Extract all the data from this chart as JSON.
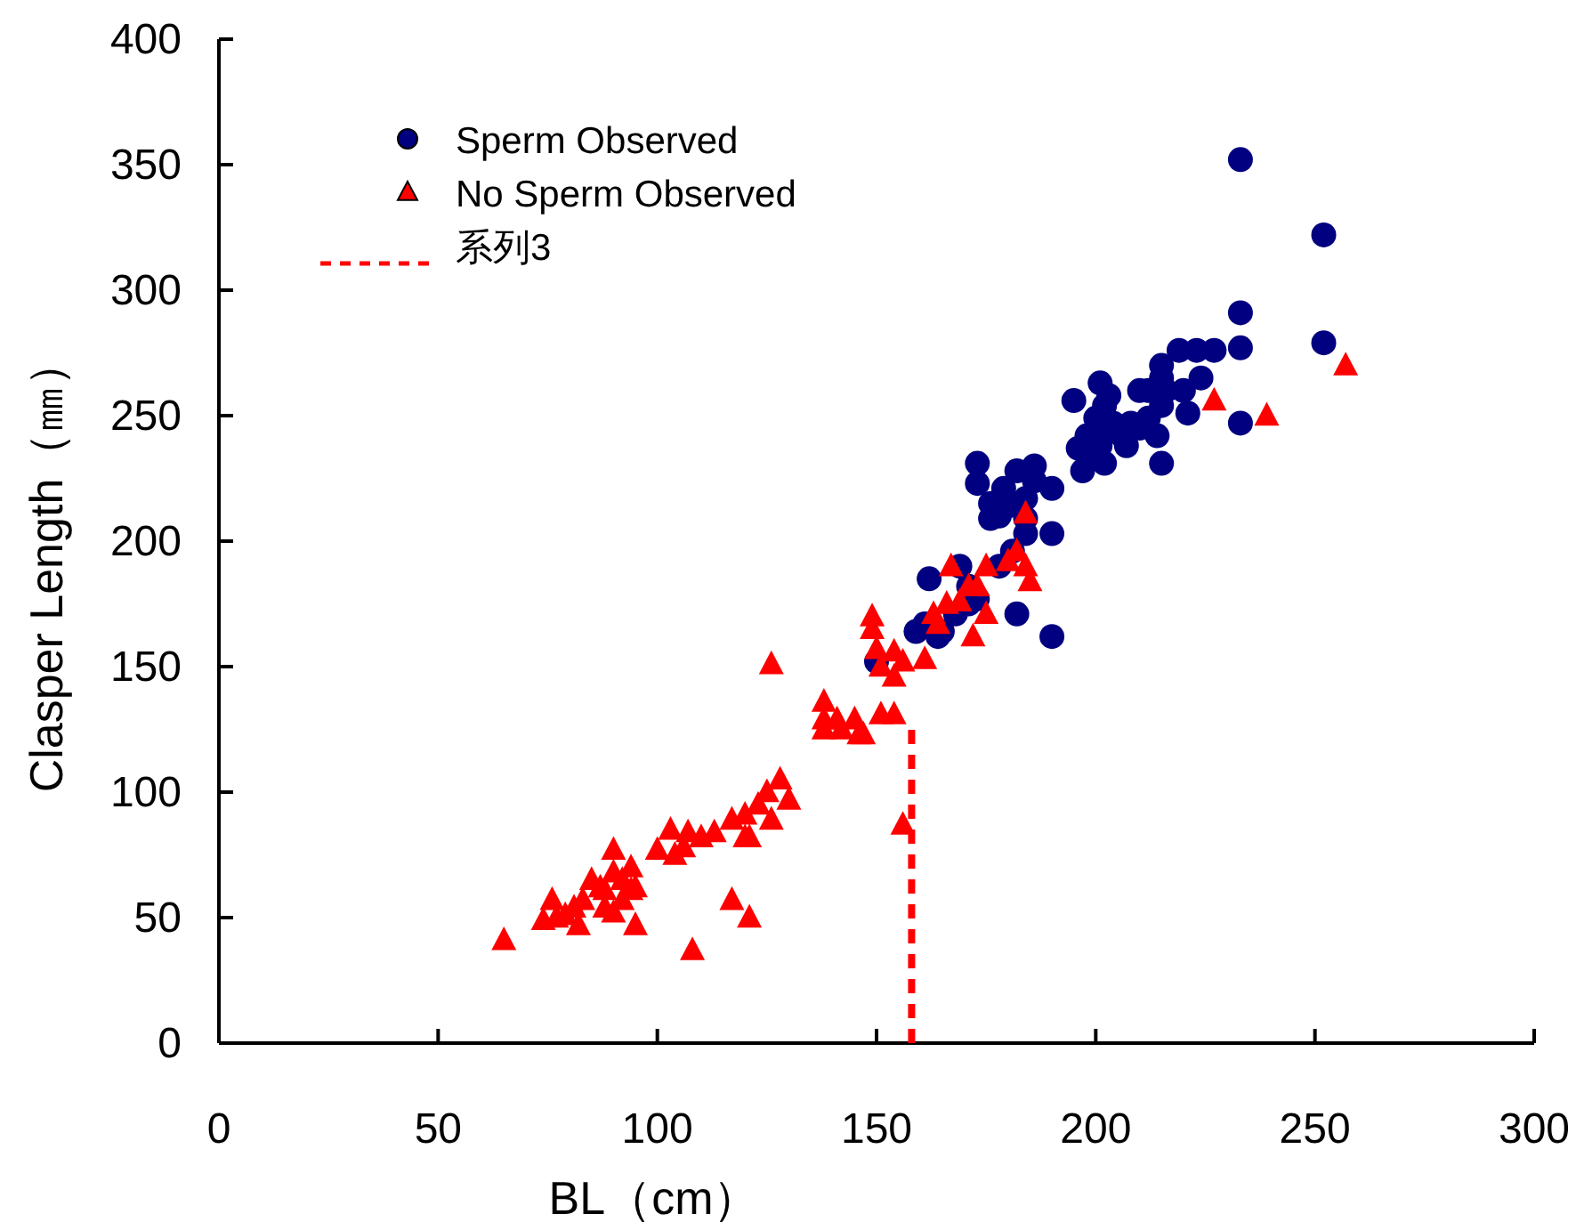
{
  "chart_data": {
    "type": "scatter",
    "xlabel": "BL（cm）",
    "ylabel": "Clasper Length（㎜）",
    "xlim": [
      0,
      300
    ],
    "xticks": [
      0,
      50,
      100,
      150,
      200,
      250,
      300
    ],
    "ylim": [
      0,
      400
    ],
    "yticks": [
      0,
      50,
      100,
      150,
      200,
      250,
      300,
      350,
      400
    ],
    "grid": false,
    "legend": "top left",
    "series": [
      {
        "name": "Sperm Observed",
        "marker": "circle",
        "color": "#000080",
        "x": [
          233,
          252,
          252,
          233,
          233,
          233,
          227,
          219,
          223,
          215,
          215,
          224,
          212,
          216,
          220,
          210,
          215,
          221,
          212,
          210,
          214,
          215,
          202,
          200,
          198,
          204,
          206,
          201,
          208,
          207,
          202,
          201,
          203,
          196,
          197,
          195,
          198,
          202,
          173,
          173,
          179,
          182,
          184,
          180,
          176,
          186,
          178,
          184,
          181,
          184,
          190,
          190,
          190,
          182,
          169,
          171,
          159,
          161,
          165,
          168,
          164,
          150,
          173,
          178,
          171,
          186,
          176,
          162
        ],
        "values": [
          352,
          322,
          279,
          291,
          277,
          247,
          276,
          276,
          276,
          270,
          265,
          265,
          260,
          260,
          260,
          260,
          254,
          251,
          249,
          245,
          242,
          231,
          254,
          249,
          242,
          247,
          242,
          238,
          247,
          238,
          231,
          263,
          258,
          237,
          228,
          256,
          235,
          245,
          231,
          223,
          221,
          228,
          217,
          214,
          215,
          224,
          210,
          209,
          196,
          203,
          221,
          203,
          162,
          171,
          190,
          175,
          164,
          167,
          164,
          171,
          162,
          152,
          177,
          190,
          182,
          230,
          209,
          185
        ]
      },
      {
        "name": "No Sperm Observed",
        "marker": "triangle",
        "color": "#ff0000",
        "x": [
          257,
          239,
          227,
          184,
          182,
          184,
          185,
          180,
          175,
          173,
          171,
          169,
          175,
          166,
          163,
          167,
          172,
          164,
          161,
          151,
          149,
          149,
          150,
          154,
          156,
          154,
          126,
          138,
          138,
          138,
          141,
          142,
          145,
          147,
          151,
          154,
          146,
          156,
          128,
          130,
          125,
          123,
          120,
          117,
          126,
          121,
          113,
          110,
          107,
          103,
          106,
          100,
          104,
          120,
          117,
          121,
          108,
          65,
          90,
          90,
          94,
          92,
          95,
          95,
          87,
          85,
          83,
          81,
          82,
          76,
          77,
          74,
          79,
          88,
          90,
          92,
          94,
          88
        ],
        "values": [
          270,
          250,
          256,
          211,
          196,
          190,
          184,
          192,
          190,
          182,
          182,
          176,
          171,
          175,
          171,
          190,
          162,
          167,
          153,
          150,
          170,
          165,
          157,
          156,
          152,
          146,
          151,
          136,
          129,
          125,
          129,
          125,
          129,
          123,
          131,
          131,
          123,
          87,
          105,
          97,
          100,
          95,
          91,
          89,
          89,
          82,
          84,
          82,
          84,
          85,
          78,
          77,
          75,
          82,
          57,
          50,
          37,
          41,
          68,
          77,
          70,
          65,
          62,
          47,
          62,
          65,
          57,
          54,
          47,
          57,
          50,
          49,
          51,
          54,
          52,
          57,
          61,
          61
        ]
      },
      {
        "name": "系列3",
        "type": "line",
        "line_style": "dashed",
        "color": "#ff0000",
        "x": [
          158,
          158
        ],
        "values": [
          0,
          125
        ]
      }
    ]
  }
}
